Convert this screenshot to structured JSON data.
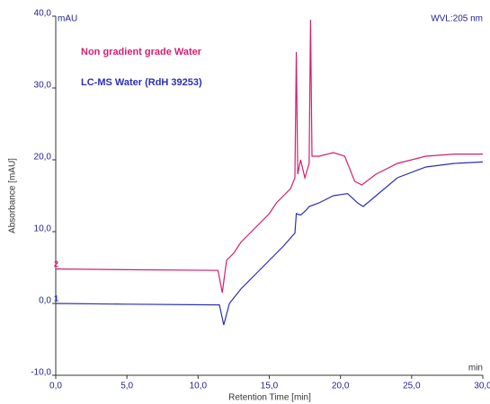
{
  "chart_data": {
    "type": "line",
    "y_label": "Absorbance [mAU]",
    "x_label": "Retention Time [min]",
    "y_unit": "mAU",
    "x_unit": "min",
    "wavelength": "WVL:205 nm",
    "xlim": [
      0,
      30
    ],
    "ylim": [
      -10,
      40
    ],
    "xticks": [
      {
        "value": 0,
        "label": "0,0"
      },
      {
        "value": 5,
        "label": "5,0"
      },
      {
        "value": 10,
        "label": "10,0"
      },
      {
        "value": 15,
        "label": "15,0"
      },
      {
        "value": 20,
        "label": "20,0"
      },
      {
        "value": 25,
        "label": "25,0"
      },
      {
        "value": 30,
        "label": "30,0"
      }
    ],
    "yticks": [
      {
        "value": -10,
        "label": "-10,0"
      },
      {
        "value": 0,
        "label": "0,0"
      },
      {
        "value": 10,
        "label": "10,0"
      },
      {
        "value": 20,
        "label": "20,0"
      },
      {
        "value": 30,
        "label": "30,0"
      },
      {
        "value": 40,
        "label": "40,0"
      }
    ],
    "series": [
      {
        "name": "Non gradient grade Water",
        "trace_label": "2",
        "color": "#d11f73",
        "x": [
          0,
          5,
          11.4,
          11.7,
          12,
          12.5,
          13,
          13.5,
          14,
          14.5,
          15,
          15.5,
          16,
          16.5,
          16.8,
          16.9,
          17.0,
          17.2,
          17.5,
          17.8,
          17.9,
          18.0,
          18.5,
          19.5,
          20.3,
          21,
          21.5,
          22.5,
          24,
          26,
          28,
          30
        ],
        "values": [
          4.8,
          4.7,
          4.6,
          1.5,
          6,
          7,
          8.5,
          9.5,
          10.5,
          11.5,
          12.5,
          14,
          15,
          16,
          17.5,
          35,
          18,
          20,
          17.5,
          19.5,
          39.5,
          20.5,
          20.5,
          21,
          20.5,
          17,
          16.5,
          18,
          19.5,
          20.5,
          20.8,
          20.8
        ]
      },
      {
        "name": "LC-MS Water (RdH 39253)",
        "trace_label": "1",
        "color": "#2a2fb3",
        "x": [
          0,
          5,
          11.5,
          11.8,
          12.2,
          13,
          14,
          15,
          16,
          16.8,
          16.9,
          17.2,
          17.6,
          17.8,
          18.5,
          19.5,
          20.5,
          21.2,
          21.6,
          22.5,
          24,
          26,
          28,
          30
        ],
        "values": [
          0,
          -0.1,
          -0.2,
          -3,
          0,
          2,
          4,
          6,
          8,
          9.8,
          12.5,
          12.3,
          13,
          13.5,
          14,
          15,
          15.3,
          14,
          13.5,
          15,
          17.5,
          19,
          19.5,
          19.7
        ]
      }
    ]
  }
}
